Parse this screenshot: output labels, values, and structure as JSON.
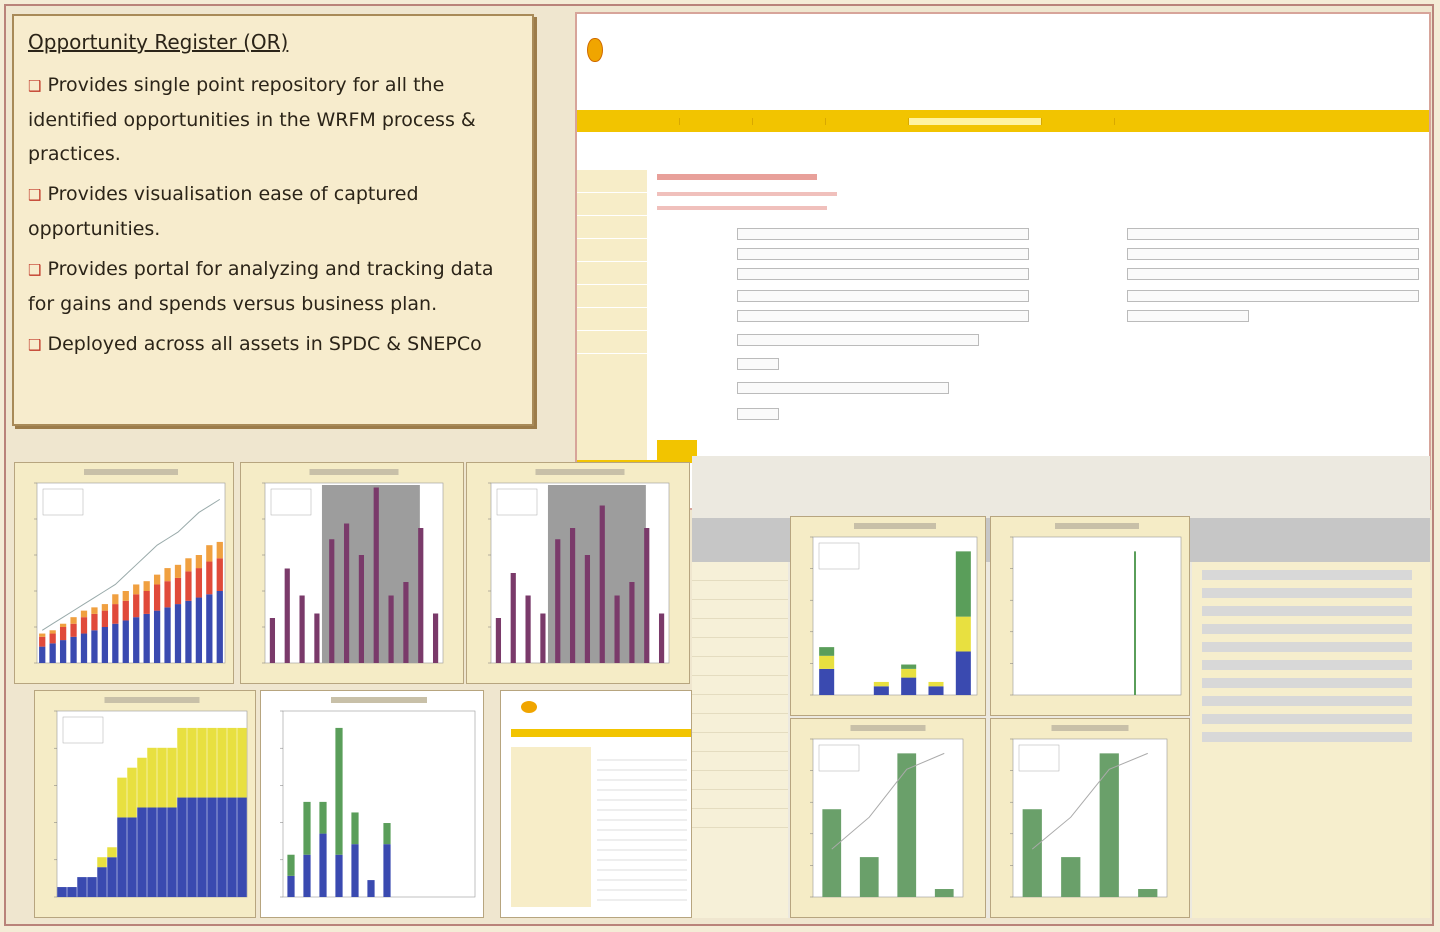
{
  "text_panel": {
    "title": "Opportunity Register (OR)",
    "bullets": [
      "Provides single point repository for all the identified opportunities in the WRFM process & practices.",
      "Provides visualisation ease of captured opportunities.",
      "Provides portal for analyzing and tracking data for gains and spends versus business plan.",
      "Deployed across all assets in SPDC & SNEPCo"
    ]
  },
  "colors": {
    "accent_yellow": "#f2c400",
    "frame_border": "#b9837a",
    "bar_purple": "#7a3a6a",
    "bar_green": "#5a9e5a",
    "bar_blue": "#3a4ab0",
    "bar_red": "#e04a3a",
    "bar_orange": "#f0a040",
    "bar_yellow": "#e8e040"
  },
  "icons": {
    "logo": "shell-logo-icon"
  },
  "chart_data": [
    {
      "type": "bar",
      "stacked": true,
      "series": [
        {
          "values": [
            5,
            6,
            7,
            8,
            9,
            10,
            11,
            12,
            13,
            14,
            15,
            16,
            17,
            18,
            19,
            20,
            21,
            22
          ]
        },
        {
          "values": [
            3,
            3,
            4,
            4,
            5,
            5,
            5,
            6,
            6,
            7,
            7,
            8,
            8,
            8,
            9,
            9,
            10,
            10
          ]
        },
        {
          "values": [
            1,
            1,
            1,
            2,
            2,
            2,
            2,
            3,
            3,
            3,
            3,
            3,
            4,
            4,
            4,
            4,
            5,
            5
          ]
        }
      ],
      "line": [
        10,
        12,
        14,
        16,
        18,
        20,
        22,
        24,
        27,
        30,
        33,
        36,
        38,
        40,
        43,
        46,
        48,
        50
      ]
    },
    {
      "type": "bar",
      "values": [
        20,
        42,
        30,
        22,
        55,
        62,
        48,
        78,
        30,
        36,
        60,
        22
      ],
      "ylim": [
        0,
        80
      ]
    },
    {
      "type": "bar",
      "values": [
        20,
        40,
        30,
        22,
        55,
        60,
        48,
        70,
        30,
        36,
        60,
        22
      ],
      "ylim": [
        0,
        80
      ]
    },
    {
      "type": "bar",
      "stacked": true,
      "series": [
        {
          "values": [
            1,
            1,
            2,
            2,
            3,
            4,
            8,
            8,
            9,
            9,
            9,
            9,
            10,
            10,
            10,
            10,
            10,
            10,
            10
          ]
        },
        {
          "values": [
            0,
            0,
            0,
            0,
            1,
            1,
            4,
            5,
            5,
            6,
            6,
            6,
            7,
            7,
            7,
            7,
            7,
            7,
            7
          ]
        }
      ]
    },
    {
      "type": "bar",
      "stacked": true,
      "series": [
        {
          "values": [
            10,
            20,
            30,
            20,
            25,
            8,
            25,
            0,
            0,
            0,
            0,
            0
          ]
        },
        {
          "values": [
            10,
            25,
            15,
            60,
            15,
            0,
            10,
            0,
            0,
            0,
            0,
            0
          ]
        }
      ]
    },
    {
      "type": "bar",
      "stacked": true,
      "series": [
        {
          "values": [
            6,
            0,
            2,
            4,
            2,
            10
          ]
        },
        {
          "values": [
            3,
            0,
            1,
            2,
            1,
            8
          ]
        },
        {
          "values": [
            2,
            0,
            0,
            1,
            0,
            15
          ]
        }
      ]
    },
    {
      "type": "bar",
      "values": [
        0,
        0,
        0,
        0,
        0,
        0,
        0,
        0,
        0,
        0,
        0,
        0,
        0,
        0,
        0,
        0,
        0,
        0,
        0,
        0,
        0,
        0,
        0,
        0,
        0,
        0,
        0,
        0,
        0,
        0,
        40,
        0,
        0,
        0,
        0,
        0,
        0,
        0,
        0,
        0,
        0,
        0
      ]
    },
    {
      "type": "bar",
      "values": [
        55,
        25,
        90,
        5
      ],
      "line": [
        30,
        50,
        80,
        90
      ]
    },
    {
      "type": "bar",
      "values": [
        55,
        25,
        90,
        5
      ],
      "line": [
        30,
        50,
        80,
        90
      ]
    }
  ]
}
